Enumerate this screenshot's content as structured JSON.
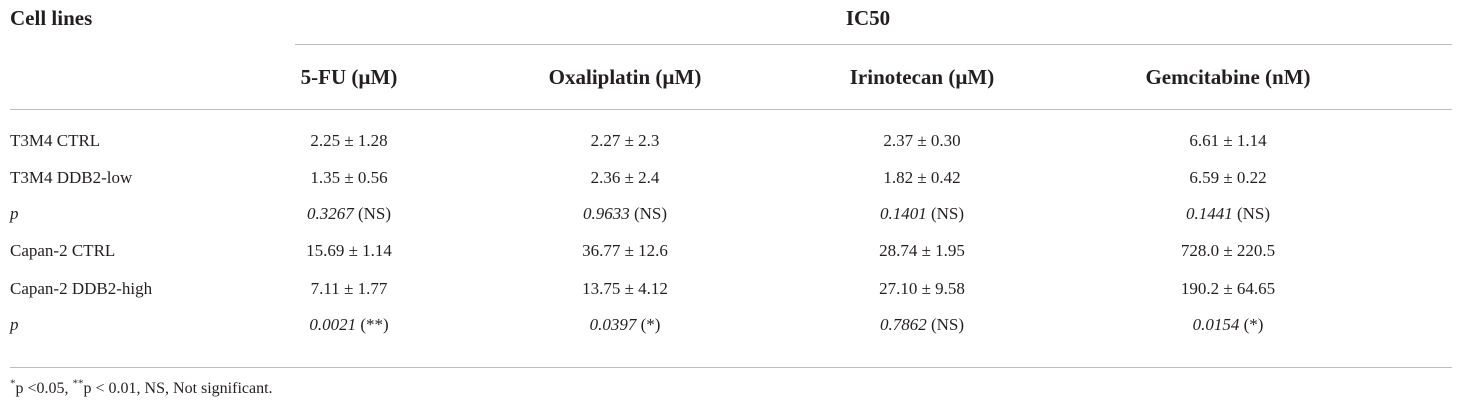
{
  "table": {
    "row_header_label": "Cell lines",
    "group_label": "IC50",
    "columns": [
      "5-FU (µM)",
      "Oxaliplatin (µM)",
      "Irinotecan (µM)",
      "Gemcitabine (nM)"
    ],
    "rows": [
      {
        "label": "T3M4 CTRL",
        "italic_label": false,
        "cells": [
          {
            "value": "2.25 ± 1.28"
          },
          {
            "value": "2.27 ± 2.3"
          },
          {
            "value": "2.37 ± 0.30"
          },
          {
            "value": "6.61 ± 1.14"
          }
        ]
      },
      {
        "label": "T3M4 DDB2-low",
        "italic_label": false,
        "cells": [
          {
            "value": "1.35 ± 0.56"
          },
          {
            "value": "2.36 ± 2.4"
          },
          {
            "value": "1.82 ± 0.42"
          },
          {
            "value": "6.59 ± 0.22"
          }
        ]
      },
      {
        "label": "p",
        "italic_label": true,
        "cells": [
          {
            "p": "0.3267",
            "sig": "(NS)"
          },
          {
            "p": "0.9633",
            "sig": "(NS)"
          },
          {
            "p": "0.1401",
            "sig": "(NS)"
          },
          {
            "p": "0.1441",
            "sig": "(NS)"
          }
        ]
      },
      {
        "label": "Capan-2 CTRL",
        "italic_label": false,
        "cells": [
          {
            "value": "15.69 ± 1.14"
          },
          {
            "value": "36.77 ± 12.6"
          },
          {
            "value": "28.74 ± 1.95"
          },
          {
            "value": "728.0 ± 220.5"
          }
        ]
      },
      {
        "label": "Capan-2 DDB2-high",
        "italic_label": false,
        "cells": [
          {
            "value": "7.11 ± 1.77"
          },
          {
            "value": "13.75 ± 4.12"
          },
          {
            "value": "27.10 ± 9.58"
          },
          {
            "value": "190.2 ± 64.65"
          }
        ]
      },
      {
        "label": "p",
        "italic_label": true,
        "cells": [
          {
            "p": "0.0021",
            "sig": "(**)"
          },
          {
            "p": "0.0397",
            "sig": "(*)"
          },
          {
            "p": "0.7862",
            "sig": "(NS)"
          },
          {
            "p": "0.0154",
            "sig": "(*)"
          }
        ]
      }
    ]
  },
  "footnote": {
    "sup1": "*",
    "part1": "p <0.05, ",
    "sup2": "**",
    "part2": "p < 0.01, NS, Not significant."
  }
}
